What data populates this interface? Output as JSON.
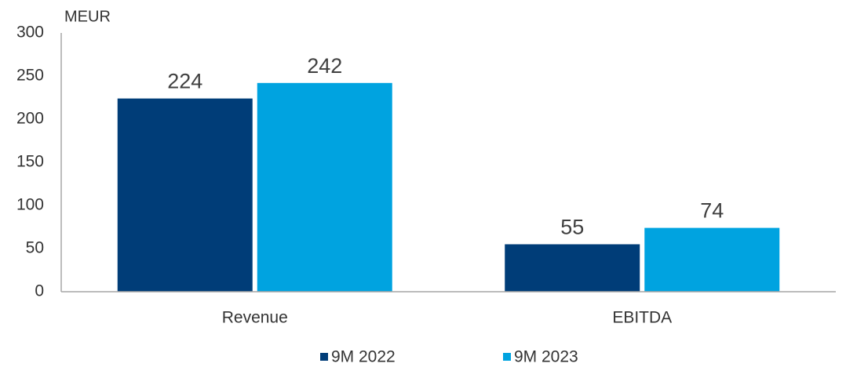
{
  "chart_data": {
    "type": "bar",
    "y_label": "MEUR",
    "categories": [
      "Revenue",
      "EBITDA"
    ],
    "series": [
      {
        "name": "9M 2022",
        "color": "#003d78",
        "values": [
          224,
          55
        ]
      },
      {
        "name": "9M 2023",
        "color": "#00a3e0",
        "values": [
          242,
          74
        ]
      }
    ],
    "ylim": [
      0,
      300
    ],
    "yticks": [
      0,
      50,
      100,
      150,
      200,
      250,
      300
    ],
    "grid": false,
    "legend": "bottom"
  }
}
